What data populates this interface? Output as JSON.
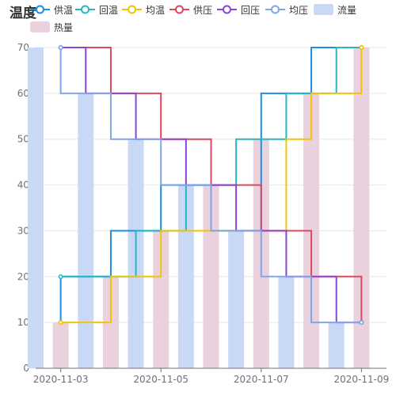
{
  "chart_data": {
    "type": "line",
    "title": "温度",
    "legend": [
      "供温",
      "回温",
      "均温",
      "供压",
      "回压",
      "均压",
      "流量",
      "热量"
    ],
    "x_ticks": [
      "2020-11-03",
      "2020-11-05",
      "2020-11-07",
      "2020-11-09"
    ],
    "x_domain": [
      "2020-11-02 12:00",
      "2020-11-09 12:00"
    ],
    "ylim": [
      0,
      70
    ],
    "y_ticks": [
      0,
      10,
      20,
      30,
      40,
      50,
      60,
      70
    ],
    "grid": true,
    "legend_position": "top",
    "line_style": "step",
    "series": [
      {
        "name": "供温",
        "type": "line",
        "color": "#1f8de0",
        "x": [
          "2020-11-03 00:00",
          "2020-11-03 00:00",
          "2020-11-04 00:00",
          "2020-11-04 00:00",
          "2020-11-05 00:00",
          "2020-11-05 00:00",
          "2020-11-06 00:00",
          "2020-11-06 00:00",
          "2020-11-07 00:00",
          "2020-11-07 00:00",
          "2020-11-08 00:00",
          "2020-11-08 00:00",
          "2020-11-09 00:00"
        ],
        "y": [
          10,
          20,
          20,
          30,
          30,
          40,
          40,
          30,
          30,
          60,
          60,
          70,
          70
        ]
      },
      {
        "name": "回温",
        "type": "line",
        "color": "#24b8c0",
        "x": [
          "2020-11-03 00:00",
          "2020-11-03 12:00",
          "2020-11-03 12:00",
          "2020-11-04 12:00",
          "2020-11-04 12:00",
          "2020-11-05 12:00",
          "2020-11-05 12:00",
          "2020-11-06 12:00",
          "2020-11-06 12:00",
          "2020-11-07 12:00",
          "2020-11-07 12:00",
          "2020-11-08 12:00",
          "2020-11-08 12:00",
          "2020-11-09 00:00"
        ],
        "y": [
          20,
          20,
          20,
          20,
          30,
          30,
          40,
          40,
          50,
          50,
          60,
          60,
          70,
          70
        ]
      },
      {
        "name": "均温",
        "type": "line",
        "color": "#f5c400",
        "x": [
          "2020-11-03 00:00",
          "2020-11-04 00:00",
          "2020-11-04 00:00",
          "2020-11-05 00:00",
          "2020-11-05 00:00",
          "2020-11-06 00:00",
          "2020-11-06 00:00",
          "2020-11-07 00:00",
          "2020-11-07 12:00",
          "2020-11-07 12:00",
          "2020-11-08 00:00",
          "2020-11-08 00:00",
          "2020-11-09 00:00",
          "2020-11-09 00:00"
        ],
        "y": [
          10,
          10,
          20,
          20,
          30,
          30,
          30,
          30,
          30,
          50,
          50,
          60,
          60,
          70
        ]
      },
      {
        "name": "供压",
        "type": "line",
        "color": "#e0475c",
        "x": [
          "2020-11-03 00:00",
          "2020-11-04 00:00",
          "2020-11-04 00:00",
          "2020-11-05 00:00",
          "2020-11-05 00:00",
          "2020-11-06 00:00",
          "2020-11-06 00:00",
          "2020-11-07 00:00",
          "2020-11-07 00:00",
          "2020-11-08 00:00",
          "2020-11-08 00:00",
          "2020-11-09 00:00",
          "2020-11-09 00:00"
        ],
        "y": [
          70,
          70,
          60,
          60,
          50,
          50,
          40,
          40,
          30,
          30,
          20,
          20,
          10
        ]
      },
      {
        "name": "回压",
        "type": "line",
        "color": "#8a44d6",
        "x": [
          "2020-11-03 00:00",
          "2020-11-03 12:00",
          "2020-11-03 12:00",
          "2020-11-04 12:00",
          "2020-11-04 12:00",
          "2020-11-05 12:00",
          "2020-11-05 12:00",
          "2020-11-06 12:00",
          "2020-11-06 12:00",
          "2020-11-07 12:00",
          "2020-11-07 12:00",
          "2020-11-08 12:00",
          "2020-11-08 12:00",
          "2020-11-09 00:00"
        ],
        "y": [
          70,
          70,
          60,
          60,
          50,
          50,
          40,
          40,
          30,
          30,
          20,
          20,
          10,
          10
        ]
      },
      {
        "name": "均压",
        "type": "line",
        "color": "#7fa7e8",
        "x": [
          "2020-11-03 00:00",
          "2020-11-03 00:00",
          "2020-11-04 00:00",
          "2020-11-04 00:00",
          "2020-11-05 00:00",
          "2020-11-05 00:00",
          "2020-11-06 00:00",
          "2020-11-06 00:00",
          "2020-11-07 00:00",
          "2020-11-07 00:00",
          "2020-11-08 00:00",
          "2020-11-08 00:00",
          "2020-11-09 00:00"
        ],
        "y": [
          70,
          60,
          60,
          50,
          50,
          40,
          40,
          30,
          30,
          20,
          20,
          10,
          10
        ]
      },
      {
        "name": "流量",
        "type": "bar",
        "color": "#c9d9f5",
        "x": [
          "2020-11-02 12:00",
          "2020-11-03 12:00",
          "2020-11-04 12:00",
          "2020-11-05 12:00",
          "2020-11-06 12:00",
          "2020-11-07 12:00",
          "2020-11-08 12:00"
        ],
        "y": [
          70,
          60,
          50,
          40,
          30,
          20,
          10
        ]
      },
      {
        "name": "热量",
        "type": "bar",
        "color": "#e9d2dd",
        "x": [
          "2020-11-03 00:00",
          "2020-11-04 00:00",
          "2020-11-05 00:00",
          "2020-11-06 00:00",
          "2020-11-07 00:00",
          "2020-11-08 00:00",
          "2020-11-09 00:00"
        ],
        "y": [
          10,
          20,
          30,
          40,
          50,
          60,
          70
        ]
      }
    ]
  }
}
